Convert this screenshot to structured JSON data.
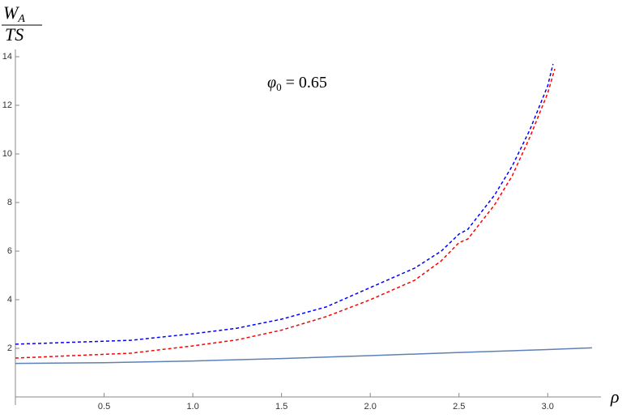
{
  "chart_data": {
    "type": "line",
    "y_label": {
      "main": "W",
      "sub": "A",
      "denominator": "TS"
    },
    "x_label": "ρ",
    "annotation": {
      "main": "φ",
      "sub": "0",
      "rest": " = 0.65"
    },
    "xlim": [
      0,
      3.3
    ],
    "ylim": [
      0,
      14.3
    ],
    "xticks": [
      0.5,
      {
        "value": 1,
        "label": "1.0"
      },
      1.5,
      {
        "value": 2,
        "label": "2.0"
      },
      2.5,
      {
        "value": 3,
        "label": "3.0"
      }
    ],
    "yticks": [
      2,
      4,
      6,
      8,
      10,
      12,
      14
    ],
    "series": [
      {
        "color": "#5e81b5",
        "dashed": false,
        "x": [
          0,
          0.5,
          1.0,
          1.5,
          2.0,
          2.5,
          3.0,
          3.25
        ],
        "values": [
          1.38,
          1.41,
          1.48,
          1.58,
          1.7,
          1.83,
          1.95,
          2.02
        ]
      },
      {
        "color": "#0000ff",
        "dashed": true,
        "x": [
          0,
          0.65,
          1.0,
          1.25,
          1.5,
          1.75,
          2.0,
          2.25,
          2.4,
          2.5,
          2.55,
          2.7,
          2.8,
          2.9,
          3.0,
          3.03
        ],
        "values": [
          2.17,
          2.33,
          2.6,
          2.83,
          3.2,
          3.7,
          4.5,
          5.3,
          6.0,
          6.7,
          6.9,
          8.3,
          9.5,
          11.0,
          12.8,
          13.7
        ]
      },
      {
        "color": "#ff0000",
        "dashed": true,
        "x": [
          0,
          0.65,
          1.0,
          1.25,
          1.5,
          1.75,
          2.0,
          2.25,
          2.4,
          2.5,
          2.55,
          2.7,
          2.8,
          2.9,
          3.0,
          3.04
        ],
        "values": [
          1.6,
          1.8,
          2.1,
          2.35,
          2.75,
          3.3,
          4.0,
          4.8,
          5.6,
          6.35,
          6.5,
          7.9,
          9.1,
          10.7,
          12.5,
          13.5
        ]
      }
    ]
  }
}
